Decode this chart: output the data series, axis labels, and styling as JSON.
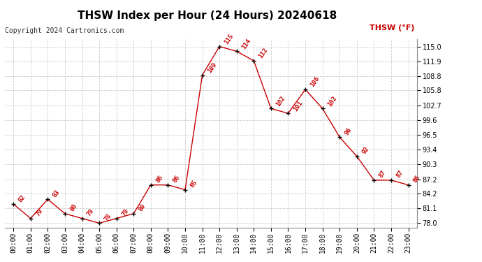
{
  "title": "THSW Index per Hour (24 Hours) 20240618",
  "copyright": "Copyright 2024 Cartronics.com",
  "legend_label": "THSW (°F)",
  "hours": [
    0,
    1,
    2,
    3,
    4,
    5,
    6,
    7,
    8,
    9,
    10,
    11,
    12,
    13,
    14,
    15,
    16,
    17,
    18,
    19,
    20,
    21,
    22,
    23
  ],
  "hour_labels": [
    "00:00",
    "01:00",
    "02:00",
    "03:00",
    "04:00",
    "05:00",
    "06:00",
    "07:00",
    "08:00",
    "09:00",
    "10:00",
    "11:00",
    "12:00",
    "13:00",
    "14:00",
    "15:00",
    "16:00",
    "17:00",
    "18:00",
    "19:00",
    "20:00",
    "21:00",
    "22:00",
    "23:00"
  ],
  "values": [
    82,
    79,
    83,
    80,
    79,
    78,
    79,
    80,
    86,
    86,
    85,
    109,
    115,
    114,
    112,
    102,
    101,
    106,
    102,
    96,
    92,
    87,
    87,
    86
  ],
  "yticks": [
    78.0,
    81.1,
    84.2,
    87.2,
    90.3,
    93.4,
    96.5,
    99.6,
    102.7,
    105.8,
    108.8,
    111.9,
    115.0
  ],
  "ylim": [
    77.0,
    116.5
  ],
  "line_color": "#cc0000",
  "marker_color": "#000000",
  "label_color": "#cc0000",
  "title_fontsize": 11,
  "copyright_fontsize": 7,
  "legend_fontsize": 8,
  "tick_fontsize": 7,
  "annotation_fontsize": 6.5,
  "background_color": "#ffffff",
  "grid_color": "#cccccc"
}
